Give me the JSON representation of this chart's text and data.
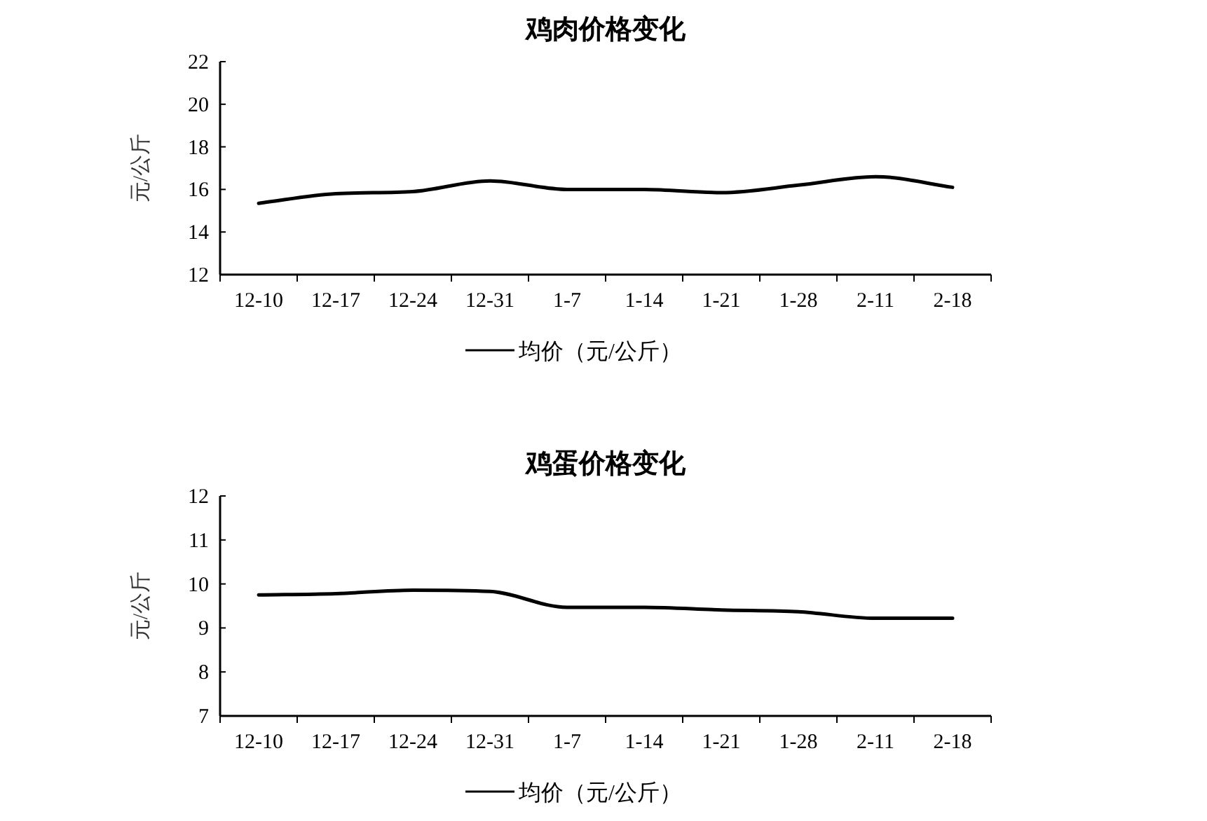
{
  "chart_data": [
    {
      "type": "line",
      "title": "鸡肉价格变化",
      "ylabel": "元/公斤",
      "categories": [
        "12-10",
        "12-17",
        "12-24",
        "12-31",
        "1-7",
        "1-14",
        "1-21",
        "1-28",
        "2-11",
        "2-18"
      ],
      "series": [
        {
          "name": "均价（元/公斤）",
          "color": "#000000",
          "values": [
            15.35,
            15.8,
            15.9,
            16.4,
            16.0,
            16.0,
            15.85,
            16.2,
            16.6,
            16.1
          ]
        }
      ],
      "ylim": [
        12,
        22
      ],
      "yticks": [
        12,
        14,
        16,
        18,
        20,
        22
      ],
      "legend": "bottom",
      "marker": "none",
      "line_style": "solid",
      "grid": false
    },
    {
      "type": "line",
      "title": "鸡蛋价格变化",
      "ylabel": "元/公斤",
      "categories": [
        "12-10",
        "12-17",
        "12-24",
        "12-31",
        "1-7",
        "1-14",
        "1-21",
        "1-28",
        "2-11",
        "2-18"
      ],
      "series": [
        {
          "name": "均价（元/公斤）",
          "color": "#000000",
          "values": [
            9.75,
            9.78,
            9.86,
            9.83,
            9.47,
            9.47,
            9.41,
            9.37,
            9.22,
            9.22
          ]
        }
      ],
      "ylim": [
        7,
        12
      ],
      "yticks": [
        7,
        8,
        9,
        10,
        11,
        12
      ],
      "legend": "bottom",
      "marker": "none",
      "line_style": "solid",
      "grid": false
    }
  ]
}
